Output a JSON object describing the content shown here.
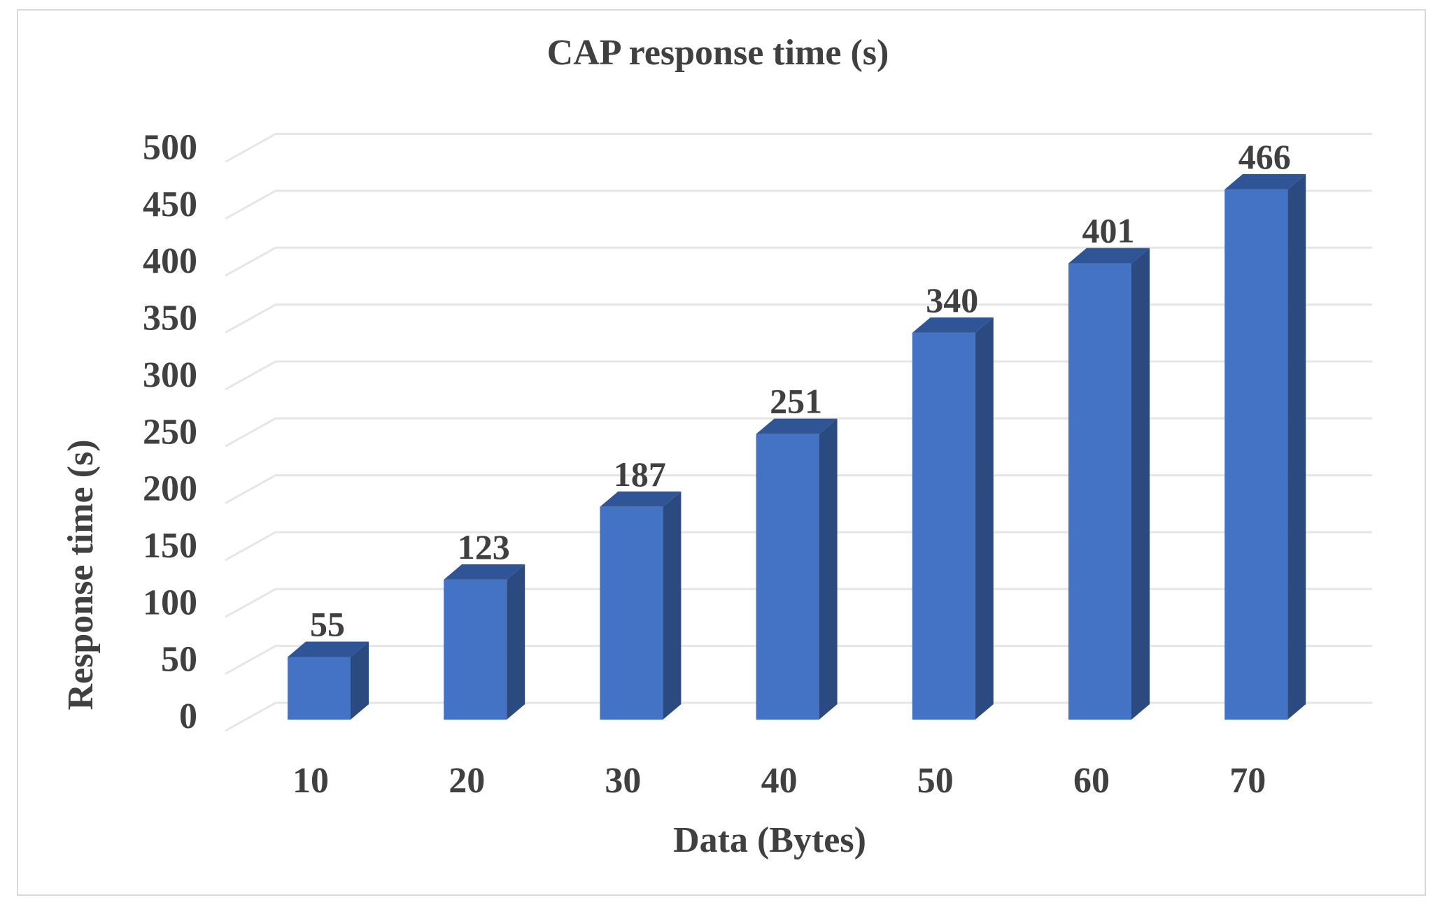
{
  "chart_data": {
    "type": "bar",
    "style": "3d-column",
    "title": "CAP response time (s)",
    "xlabel": "Data (Bytes)",
    "ylabel": "Response time (s)",
    "categories": [
      "10",
      "20",
      "30",
      "40",
      "50",
      "60",
      "70"
    ],
    "values": [
      55,
      123,
      187,
      251,
      340,
      401,
      466
    ],
    "data_labels": [
      "55",
      "123",
      "187",
      "251",
      "340",
      "401",
      "466"
    ],
    "ylim": [
      0,
      500
    ],
    "yticks": [
      "0",
      "50",
      "100",
      "150",
      "200",
      "250",
      "300",
      "350",
      "400",
      "450",
      "500"
    ],
    "grid": true,
    "legend": "none",
    "colors": {
      "bar_front": "#4472C4",
      "bar_side": "#2B4A80",
      "bar_top": "#2F5597",
      "grid": "#e6e6e6",
      "text": "#404040"
    }
  }
}
